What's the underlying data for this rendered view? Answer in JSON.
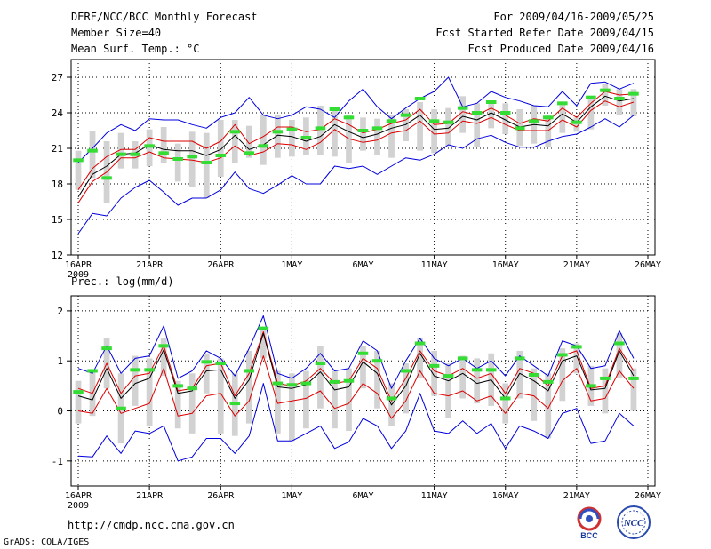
{
  "header": {
    "title": "DERF/NCC/BCC Monthly Forecast",
    "member_size": "Member Size=40",
    "variable": "Mean Surf. Temp.: °C",
    "period": "For 2009/04/16-2009/05/25",
    "started_refer": "Fcst Started Refer Date 2009/04/15",
    "produced": "Fcst Produced Date 2009/04/16"
  },
  "footer": {
    "url": "http://cmdp.ncc.cma.gov.cn",
    "credit": "GrADS: COLA/IGES",
    "logo_left_text": "BCC",
    "logo_right_text": "NCC"
  },
  "colors": {
    "max_min": "#0000dd",
    "spread": "#dd0000",
    "mean": "#000000",
    "median": "#33dd33",
    "box": "#d2d2d2"
  },
  "chart_data": [
    {
      "type": "line",
      "title": "Mean Surf. Temp.: °C",
      "x": [
        16,
        17,
        18,
        19,
        20,
        21,
        22,
        23,
        24,
        25,
        26,
        27,
        28,
        29,
        30,
        31,
        32,
        33,
        34,
        35,
        36,
        37,
        38,
        39,
        40,
        41,
        42,
        43,
        44,
        45,
        46,
        47,
        48,
        49,
        50,
        51,
        52,
        53,
        54,
        55
      ],
      "xticks": [
        "16APR",
        "21APR",
        "26APR",
        "1MAY",
        "6MAY",
        "11MAY",
        "16MAY",
        "21MAY",
        "26MAY"
      ],
      "xtick_year": "2009",
      "yticks": [
        "12",
        "15",
        "18",
        "21",
        "24",
        "27"
      ],
      "ylim": [
        12,
        28.5
      ],
      "series": [
        {
          "name": "max",
          "role": "max_min",
          "values": [
            19.8,
            21.0,
            22.3,
            23.0,
            22.5,
            23.5,
            23.4,
            23.4,
            23.0,
            22.7,
            23.6,
            24.0,
            25.3,
            23.8,
            23.5,
            23.8,
            24.5,
            24.3,
            23.6,
            25.0,
            26.0,
            24.5,
            23.5,
            24.4,
            25.2,
            25.8,
            27.0,
            24.5,
            24.8,
            25.8,
            25.3,
            25.0,
            24.6,
            24.5,
            25.8,
            24.6,
            26.5,
            26.6,
            26.0,
            26.5
          ]
        },
        {
          "name": "min",
          "role": "max_min",
          "values": [
            13.8,
            15.5,
            15.3,
            16.8,
            17.7,
            18.3,
            17.3,
            16.2,
            16.8,
            16.8,
            17.5,
            19.0,
            17.6,
            17.2,
            17.9,
            18.7,
            18.0,
            18.0,
            19.5,
            19.3,
            19.5,
            18.8,
            19.5,
            20.2,
            20.0,
            20.5,
            21.3,
            21.0,
            21.8,
            22.1,
            21.5,
            21.1,
            21.1,
            21.6,
            22.0,
            22.2,
            22.8,
            23.5,
            22.8,
            23.8
          ]
        },
        {
          "name": "spread_hi",
          "role": "spread",
          "values": [
            17.5,
            19.3,
            20.3,
            20.9,
            20.9,
            21.9,
            21.6,
            21.6,
            21.6,
            21.0,
            21.6,
            23.0,
            21.4,
            22.0,
            22.8,
            22.8,
            22.4,
            22.6,
            23.5,
            23.0,
            22.3,
            22.6,
            23.1,
            23.4,
            24.3,
            23.0,
            23.1,
            24.1,
            23.8,
            24.4,
            23.8,
            23.1,
            23.5,
            23.3,
            24.4,
            23.6,
            24.8,
            25.8,
            25.5,
            25.6
          ]
        },
        {
          "name": "spread_lo",
          "role": "spread",
          "values": [
            16.4,
            18.2,
            19.0,
            20.2,
            20.2,
            20.7,
            20.2,
            20.1,
            20.0,
            19.8,
            20.2,
            21.2,
            20.4,
            20.7,
            21.4,
            21.3,
            20.9,
            21.5,
            22.6,
            21.8,
            21.5,
            21.7,
            22.3,
            22.5,
            23.3,
            22.2,
            22.3,
            23.3,
            23.1,
            23.6,
            23.0,
            22.5,
            22.5,
            22.5,
            23.4,
            22.8,
            24.2,
            25.0,
            24.5,
            24.9
          ]
        },
        {
          "name": "mean",
          "role": "mean",
          "values": [
            16.9,
            18.8,
            19.5,
            20.5,
            20.6,
            21.3,
            20.9,
            20.8,
            20.8,
            20.4,
            20.9,
            22.1,
            20.9,
            21.3,
            22.1,
            22.0,
            21.6,
            22.0,
            23.0,
            22.4,
            21.9,
            22.2,
            22.7,
            23.0,
            23.8,
            22.6,
            22.7,
            23.7,
            23.4,
            24.0,
            23.4,
            22.8,
            23.0,
            22.9,
            23.9,
            23.2,
            24.5,
            25.4,
            25.0,
            25.2
          ]
        }
      ],
      "boxes": [
        [
          17.5,
          20.8
        ],
        [
          18.5,
          22.5
        ],
        [
          16.4,
          21.6
        ],
        [
          19.3,
          22.3
        ],
        [
          19.3,
          21.6
        ],
        [
          19.5,
          22.6
        ],
        [
          19.8,
          22.8
        ],
        [
          18.2,
          21.4
        ],
        [
          17.7,
          22.4
        ],
        [
          16.8,
          22.3
        ],
        [
          18.6,
          23.4
        ],
        [
          19.8,
          23.4
        ],
        [
          20.2,
          22.9
        ],
        [
          19.6,
          23.8
        ],
        [
          20.2,
          23.8
        ],
        [
          20.3,
          23.4
        ],
        [
          20.4,
          23.6
        ],
        [
          20.4,
          24.6
        ],
        [
          20.3,
          24.4
        ],
        [
          19.8,
          23.8
        ],
        [
          20.8,
          23.6
        ],
        [
          20.4,
          23.5
        ],
        [
          20.2,
          23.8
        ],
        [
          21.6,
          24.3
        ],
        [
          20.8,
          24.9
        ],
        [
          20.6,
          24.3
        ],
        [
          21.2,
          24.4
        ],
        [
          22.3,
          25.4
        ],
        [
          21.1,
          24.8
        ],
        [
          22.7,
          24.8
        ],
        [
          22.2,
          24.8
        ],
        [
          21.2,
          24.3
        ],
        [
          21.4,
          24.6
        ],
        [
          21.1,
          23.8
        ],
        [
          22.3,
          24.9
        ],
        [
          22.4,
          23.6
        ],
        [
          22.6,
          25.3
        ],
        [
          24.6,
          26.4
        ],
        [
          23.8,
          26.0
        ],
        [
          23.7,
          26.0
        ]
      ],
      "medians": [
        20.0,
        20.8,
        18.5,
        20.5,
        20.5,
        21.2,
        20.6,
        20.1,
        20.3,
        19.8,
        20.4,
        22.4,
        20.6,
        21.2,
        22.4,
        22.6,
        21.9,
        22.7,
        24.3,
        23.6,
        22.5,
        22.7,
        23.3,
        23.8,
        25.2,
        23.3,
        23.2,
        24.4,
        24.0,
        24.9,
        24.0,
        22.7,
        23.3,
        23.6,
        24.8,
        23.2,
        25.3,
        25.9,
        25.2,
        25.6
      ]
    },
    {
      "type": "line",
      "title": "Prec.: log(mm/d)",
      "x": [
        16,
        17,
        18,
        19,
        20,
        21,
        22,
        23,
        24,
        25,
        26,
        27,
        28,
        29,
        30,
        31,
        32,
        33,
        34,
        35,
        36,
        37,
        38,
        39,
        40,
        41,
        42,
        43,
        44,
        45,
        46,
        47,
        48,
        49,
        50,
        51,
        52,
        53,
        54,
        55
      ],
      "xticks": [
        "16APR",
        "21APR",
        "26APR",
        "1MAY",
        "6MAY",
        "11MAY",
        "16MAY",
        "21MAY",
        "26MAY"
      ],
      "xtick_year": "2009",
      "yticks": [
        "-1",
        "0",
        "1",
        "2"
      ],
      "ylim": [
        -1.5,
        2.3
      ],
      "series": [
        {
          "name": "max",
          "role": "max_min",
          "values": [
            0.85,
            0.75,
            1.3,
            0.75,
            1.05,
            1.1,
            1.7,
            0.65,
            0.8,
            1.2,
            1.05,
            0.7,
            1.25,
            1.9,
            0.75,
            0.65,
            0.85,
            1.15,
            0.8,
            0.85,
            1.4,
            1.2,
            0.45,
            1.0,
            1.45,
            1.05,
            0.9,
            1.05,
            0.85,
            1.0,
            0.7,
            1.1,
            0.9,
            0.7,
            1.4,
            1.3,
            0.85,
            0.9,
            1.6,
            1.05
          ]
        },
        {
          "name": "min",
          "role": "max_min",
          "values": [
            -0.9,
            -0.92,
            -0.5,
            -0.85,
            -0.4,
            -0.45,
            -0.3,
            -1.0,
            -0.92,
            -0.55,
            -0.55,
            -0.85,
            -0.5,
            0.55,
            -0.6,
            -0.6,
            -0.45,
            -0.3,
            -0.75,
            -0.62,
            -0.15,
            -0.3,
            -0.75,
            -0.4,
            0.35,
            -0.4,
            -0.45,
            -0.2,
            -0.45,
            -0.25,
            -0.75,
            -0.3,
            -0.4,
            -0.55,
            -0.05,
            0.05,
            -0.65,
            -0.6,
            -0.05,
            -0.3
          ]
        },
        {
          "name": "spread_hi",
          "role": "spread",
          "values": [
            0.45,
            0.35,
            0.95,
            0.35,
            0.7,
            0.75,
            1.3,
            0.4,
            0.45,
            0.9,
            0.95,
            0.3,
            0.75,
            1.58,
            0.55,
            0.5,
            0.6,
            0.85,
            0.55,
            0.6,
            1.05,
            0.85,
            0.2,
            0.65,
            1.2,
            0.8,
            0.7,
            0.85,
            0.65,
            0.75,
            0.35,
            0.85,
            0.75,
            0.5,
            1.1,
            1.2,
            0.45,
            0.5,
            1.25,
            0.8
          ]
        },
        {
          "name": "spread_lo",
          "role": "spread",
          "values": [
            0.0,
            -0.05,
            0.45,
            -0.05,
            0.05,
            0.15,
            0.85,
            -0.1,
            -0.05,
            0.3,
            0.35,
            -0.1,
            0.2,
            1.1,
            0.15,
            0.2,
            0.25,
            0.4,
            0.05,
            0.15,
            0.55,
            0.35,
            -0.15,
            0.2,
            0.8,
            0.35,
            0.3,
            0.4,
            0.2,
            0.3,
            -0.05,
            0.35,
            0.3,
            0.05,
            0.6,
            0.85,
            0.2,
            0.25,
            0.8,
            0.45
          ]
        },
        {
          "name": "mean",
          "role": "mean",
          "values": [
            0.3,
            0.22,
            0.85,
            0.25,
            0.55,
            0.65,
            1.22,
            0.35,
            0.4,
            0.8,
            0.82,
            0.25,
            0.62,
            1.55,
            0.48,
            0.45,
            0.52,
            0.78,
            0.42,
            0.48,
            0.98,
            0.75,
            0.12,
            0.5,
            1.15,
            0.7,
            0.6,
            0.75,
            0.55,
            0.62,
            0.25,
            0.75,
            0.6,
            0.4,
            1.0,
            1.1,
            0.42,
            0.45,
            1.2,
            0.7
          ]
        }
      ],
      "boxes": [
        [
          -0.25,
          0.6
        ],
        [
          -0.1,
          0.8
        ],
        [
          0.45,
          1.45
        ],
        [
          -0.65,
          0.75
        ],
        [
          0.1,
          1.1
        ],
        [
          -0.3,
          1.05
        ],
        [
          0.7,
          1.45
        ],
        [
          -0.35,
          0.6
        ],
        [
          -0.45,
          0.75
        ],
        [
          0.35,
          1.15
        ],
        [
          -0.45,
          1.05
        ],
        [
          -0.5,
          0.75
        ],
        [
          -0.25,
          1.2
        ],
        [
          1.05,
          1.65
        ],
        [
          -0.45,
          0.8
        ],
        [
          -0.6,
          0.75
        ],
        [
          -0.35,
          0.8
        ],
        [
          0.05,
          1.3
        ],
        [
          -0.35,
          0.8
        ],
        [
          -0.4,
          0.85
        ],
        [
          0.45,
          1.3
        ],
        [
          0.05,
          1.2
        ],
        [
          -0.3,
          0.55
        ],
        [
          -0.05,
          0.95
        ],
        [
          0.65,
          1.45
        ],
        [
          0.3,
          1.2
        ],
        [
          -0.15,
          0.95
        ],
        [
          0.25,
          1.1
        ],
        [
          0.15,
          1.05
        ],
        [
          0.1,
          1.15
        ],
        [
          -0.25,
          0.55
        ],
        [
          0.25,
          1.2
        ],
        [
          -0.2,
          0.85
        ],
        [
          -0.55,
          0.75
        ],
        [
          0.2,
          1.25
        ],
        [
          0.75,
          1.35
        ],
        [
          0.1,
          0.9
        ],
        [
          -0.05,
          0.85
        ],
        [
          0.65,
          1.55
        ],
        [
          0.0,
          0.85
        ]
      ],
      "medians": [
        0.38,
        0.8,
        1.25,
        0.05,
        0.82,
        0.82,
        1.3,
        0.5,
        0.45,
        0.98,
        0.95,
        0.15,
        0.8,
        1.65,
        0.55,
        0.52,
        0.55,
        0.95,
        0.58,
        0.6,
        1.15,
        1.0,
        0.25,
        0.8,
        1.35,
        0.9,
        0.7,
        1.05,
        0.82,
        0.82,
        0.25,
        1.05,
        0.72,
        0.58,
        1.12,
        1.28,
        0.5,
        0.65,
        1.35,
        0.65
      ]
    }
  ]
}
